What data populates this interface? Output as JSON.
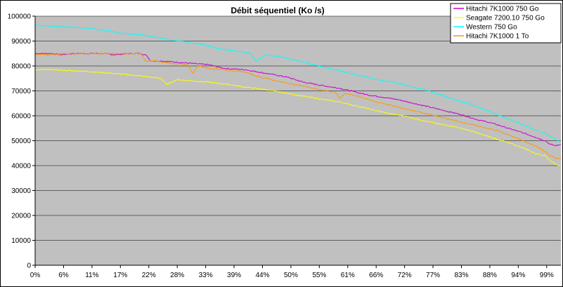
{
  "chart_data": {
    "type": "line",
    "title": "Débit séquentiel (Ko /s)",
    "xlabel": "",
    "ylabel": "",
    "ylim": [
      0,
      100000
    ],
    "yticks": [
      0,
      10000,
      20000,
      30000,
      40000,
      50000,
      60000,
      70000,
      80000,
      90000,
      100000
    ],
    "xtick_labels": [
      "0%",
      "6%",
      "11%",
      "17%",
      "22%",
      "28%",
      "33%",
      "39%",
      "44%",
      "50%",
      "55%",
      "61%",
      "66%",
      "72%",
      "77%",
      "83%",
      "88%",
      "94%",
      "99%"
    ],
    "x_range_percent": [
      0,
      100
    ],
    "grid": "horizontal",
    "plot_background": "#c0c0c0",
    "legend_position": "top-right",
    "series": [
      {
        "name": "Hitachi 7K1000 750 Go",
        "color": "#cc00cc",
        "x": [
          0,
          3,
          5,
          7,
          10,
          13,
          15,
          18,
          20,
          21,
          22,
          24,
          27,
          30,
          33,
          36,
          40,
          44,
          48,
          51,
          55,
          58,
          61,
          63,
          66,
          69,
          72,
          75,
          78,
          81,
          84,
          87,
          90,
          93,
          95,
          97,
          98,
          99,
          100
        ],
        "y": [
          85000,
          85000,
          84500,
          85000,
          85000,
          85000,
          84500,
          85000,
          85000,
          84500,
          82000,
          82000,
          81500,
          81000,
          80500,
          79000,
          78500,
          77000,
          75500,
          73500,
          72000,
          71000,
          69500,
          68500,
          67500,
          66500,
          65000,
          63500,
          62000,
          60500,
          58500,
          57000,
          55000,
          53000,
          51500,
          50000,
          48500,
          48000,
          48500
        ]
      },
      {
        "name": "Seagate 7200.10 750 Go",
        "color": "#ffff00",
        "x": [
          0,
          3,
          6,
          10,
          15,
          20,
          24,
          25,
          27,
          30,
          33,
          37,
          40,
          44,
          48,
          52,
          55,
          58,
          61,
          64,
          67,
          70,
          73,
          76,
          79,
          82,
          85,
          88,
          91,
          93,
          95,
          97,
          98,
          99,
          100
        ],
        "y": [
          78500,
          78500,
          78200,
          77800,
          77000,
          76000,
          75000,
          72500,
          74500,
          74000,
          73500,
          72500,
          71500,
          70500,
          69000,
          67500,
          66500,
          65500,
          64000,
          62500,
          61000,
          60000,
          58500,
          57000,
          56000,
          54500,
          52500,
          50500,
          48500,
          47000,
          45000,
          44000,
          42000,
          40500,
          40000
        ]
      },
      {
        "name": "Western 750 Go",
        "color": "#00ffff",
        "x": [
          0,
          2,
          5,
          8,
          11,
          14,
          17,
          20,
          23,
          26,
          29,
          32,
          35,
          38,
          41,
          42,
          44,
          47,
          50,
          53,
          56,
          59,
          62,
          65,
          68,
          71,
          74,
          77,
          80,
          83,
          86,
          89,
          92,
          95,
          97,
          99,
          100
        ],
        "y": [
          96500,
          96000,
          95800,
          95500,
          95000,
          94000,
          93000,
          92500,
          91500,
          90500,
          89500,
          88500,
          87000,
          86000,
          85000,
          82000,
          84500,
          83500,
          82000,
          80500,
          79000,
          77500,
          76000,
          74500,
          73500,
          72000,
          70500,
          68500,
          66500,
          64500,
          62000,
          59500,
          57000,
          54500,
          53000,
          50500,
          49500
        ]
      },
      {
        "name": "Hitachi 7K1000 1 To",
        "color": "#ff9900",
        "x": [
          0,
          3,
          5,
          8,
          12,
          16,
          20,
          21,
          23,
          26,
          29,
          30,
          31,
          33,
          36,
          40,
          42,
          45,
          48,
          51,
          54,
          57,
          58,
          59,
          62,
          65,
          68,
          71,
          74,
          77,
          80,
          83,
          86,
          88,
          91,
          94,
          96,
          98,
          99,
          100
        ],
        "y": [
          84500,
          84500,
          85000,
          85000,
          85000,
          85000,
          85000,
          82000,
          82000,
          81000,
          80500,
          77000,
          80000,
          79000,
          78500,
          77500,
          76000,
          74500,
          73000,
          72000,
          70500,
          69500,
          67000,
          69000,
          67500,
          65500,
          64000,
          62500,
          61000,
          59500,
          58000,
          56500,
          55000,
          54000,
          51500,
          49000,
          47000,
          44000,
          43000,
          42500
        ]
      }
    ]
  }
}
